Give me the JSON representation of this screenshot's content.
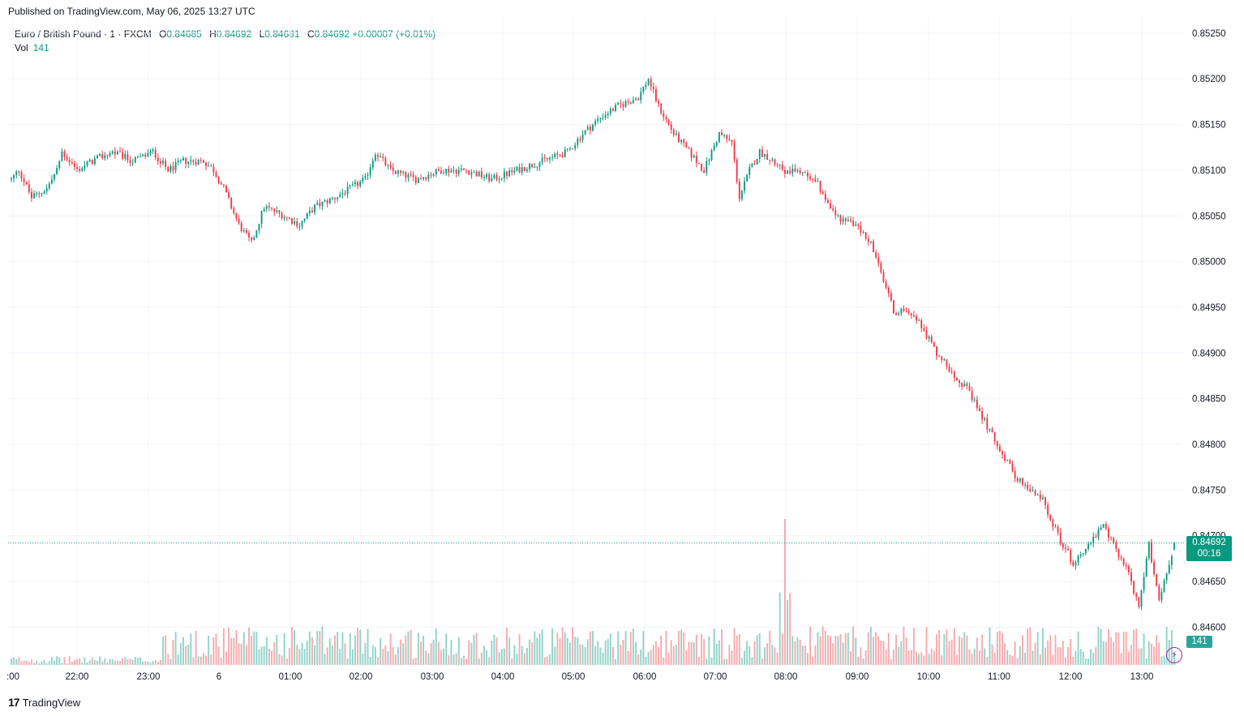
{
  "header": {
    "published": "Published on TradingView.com, May 06, 2025 13:27 UTC"
  },
  "legend": {
    "symbol": "Euro / British Pound · 1 · FXCM",
    "open_label": "O",
    "open": "0.84685",
    "high_label": "H",
    "high": "0.84692",
    "low_label": "L",
    "low": "0.84681",
    "close_label": "C",
    "close": "0.84692",
    "change": "+0.00007 (+0.01%)",
    "vol_label": "Vol",
    "vol": "141"
  },
  "price_tag": {
    "price": "0.84692",
    "countdown": "00:16"
  },
  "vol_tag": "141",
  "footer": {
    "brand": "TradingView",
    "logo": "17"
  },
  "colors": {
    "up": "#089981",
    "down": "#f23645",
    "vol_up": "#8fd3c8",
    "vol_down": "#f7a9ad",
    "grid": "#f0f3fa",
    "accent": "#9c27b0"
  },
  "icons": {
    "flash": "lightning-icon"
  },
  "chart_data": {
    "type": "candlestick",
    "symbol": "EUR/GBP",
    "interval": "1 minute",
    "ylim": [
      0.84555,
      0.85265
    ],
    "y_ticks": [
      "0.85250",
      "0.85200",
      "0.85150",
      "0.85100",
      "0.85050",
      "0.85000",
      "0.84950",
      "0.84900",
      "0.84850",
      "0.84800",
      "0.84750",
      "0.84700",
      "0.84650",
      "0.84600"
    ],
    "x_ticks": [
      ":00",
      "22:00",
      "23:00",
      "6",
      "01:00",
      "02:00",
      "03:00",
      "04:00",
      "05:00",
      "06:00",
      "07:00",
      "08:00",
      "09:00",
      "10:00",
      "11:00",
      "12:00",
      "13:00"
    ],
    "price_path": [
      [
        0,
        0.8509
      ],
      [
        3,
        0.851
      ],
      [
        8,
        0.8507
      ],
      [
        14,
        0.8508
      ],
      [
        18,
        0.851
      ],
      [
        20,
        0.8512
      ],
      [
        26,
        0.851
      ],
      [
        32,
        0.8511
      ],
      [
        40,
        0.8512
      ],
      [
        48,
        0.8511
      ],
      [
        56,
        0.8512
      ],
      [
        62,
        0.851
      ],
      [
        68,
        0.8511
      ],
      [
        76,
        0.8511
      ],
      [
        80,
        0.851
      ],
      [
        84,
        0.8508
      ],
      [
        90,
        0.8504
      ],
      [
        95,
        0.8502
      ],
      [
        100,
        0.8506
      ],
      [
        108,
        0.8505
      ],
      [
        114,
        0.8504
      ],
      [
        120,
        0.8506
      ],
      [
        128,
        0.8507
      ],
      [
        134,
        0.8508
      ],
      [
        140,
        0.8509
      ],
      [
        144,
        0.8512
      ],
      [
        150,
        0.851
      ],
      [
        160,
        0.8509
      ],
      [
        170,
        0.851
      ],
      [
        180,
        0.851
      ],
      [
        190,
        0.8509
      ],
      [
        200,
        0.851
      ],
      [
        210,
        0.8511
      ],
      [
        220,
        0.8512
      ],
      [
        226,
        0.8514
      ],
      [
        234,
        0.8516
      ],
      [
        240,
        0.8517
      ],
      [
        248,
        0.8518
      ],
      [
        252,
        0.852
      ],
      [
        256,
        0.8517
      ],
      [
        262,
        0.8514
      ],
      [
        268,
        0.8512
      ],
      [
        274,
        0.851
      ],
      [
        280,
        0.8514
      ],
      [
        285,
        0.8513
      ],
      [
        288,
        0.8507
      ],
      [
        292,
        0.851
      ],
      [
        296,
        0.8512
      ],
      [
        302,
        0.8511
      ],
      [
        306,
        0.851
      ],
      [
        312,
        0.851
      ],
      [
        318,
        0.8509
      ],
      [
        322,
        0.8507
      ],
      [
        326,
        0.8505
      ],
      [
        334,
        0.8504
      ],
      [
        340,
        0.8502
      ],
      [
        346,
        0.8497
      ],
      [
        350,
        0.8494
      ],
      [
        354,
        0.8495
      ],
      [
        360,
        0.8493
      ],
      [
        366,
        0.849
      ],
      [
        372,
        0.8488
      ],
      [
        378,
        0.8486
      ],
      [
        384,
        0.8483
      ],
      [
        390,
        0.848
      ],
      [
        396,
        0.8477
      ],
      [
        402,
        0.8475
      ],
      [
        408,
        0.8474
      ],
      [
        414,
        0.847
      ],
      [
        420,
        0.8467
      ],
      [
        426,
        0.8469
      ],
      [
        432,
        0.8471
      ],
      [
        438,
        0.8468
      ],
      [
        442,
        0.8466
      ],
      [
        446,
        0.8462
      ],
      [
        450,
        0.8469
      ],
      [
        454,
        0.8463
      ],
      [
        457,
        0.8466
      ],
      [
        460,
        0.8469
      ]
    ],
    "last": {
      "open": 0.84685,
      "high": 0.84692,
      "low": 0.84681,
      "close": 0.84692,
      "change": 7e-05,
      "change_pct": 0.01,
      "volume": 141
    }
  }
}
